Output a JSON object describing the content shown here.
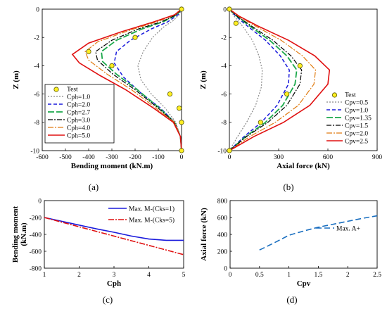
{
  "chart_data": [
    {
      "id": "a",
      "caption": "(a)",
      "type": "line",
      "xlabel": "Bending moment (kN.m)",
      "ylabel": "Z (m)",
      "xlim": [
        -600,
        0
      ],
      "ylim": [
        -10,
        0
      ],
      "xticks": [
        -600,
        -500,
        -400,
        -300,
        -200,
        -100,
        0
      ],
      "yticks": [
        0,
        -2,
        -4,
        -6,
        -8,
        -10
      ],
      "legend": "bottom-left",
      "test": {
        "name": "Test",
        "points": [
          [
            0,
            0
          ],
          [
            -200,
            -2
          ],
          [
            -400,
            -3
          ],
          [
            -300,
            -4
          ],
          [
            -50,
            -6
          ],
          [
            -10,
            -7
          ],
          [
            0,
            -8
          ],
          [
            0,
            -10
          ]
        ]
      },
      "series": [
        {
          "name": "Cph=1.0",
          "color": "#888888",
          "dash": "2,2",
          "width": 1.2,
          "points": [
            [
              0,
              0
            ],
            [
              -10,
              -0.4
            ],
            [
              -35,
              -0.8
            ],
            [
              -80,
              -1.3
            ],
            [
              -125,
              -2.0
            ],
            [
              -165,
              -3.0
            ],
            [
              -188,
              -4.0
            ],
            [
              -175,
              -5.0
            ],
            [
              -130,
              -6.0
            ],
            [
              -70,
              -7.0
            ],
            [
              -25,
              -8.0
            ],
            [
              -5,
              -9.0
            ],
            [
              0,
              -10
            ]
          ]
        },
        {
          "name": "Cph=2.0",
          "color": "#1a1adc",
          "dash": "5,3",
          "width": 1.5,
          "points": [
            [
              0,
              0
            ],
            [
              -15,
              -0.4
            ],
            [
              -60,
              -0.9
            ],
            [
              -130,
              -1.4
            ],
            [
              -220,
              -2.2
            ],
            [
              -280,
              -3.0
            ],
            [
              -290,
              -3.8
            ],
            [
              -250,
              -4.8
            ],
            [
              -170,
              -6.0
            ],
            [
              -90,
              -7.0
            ],
            [
              -30,
              -8.0
            ],
            [
              -5,
              -9.0
            ],
            [
              0,
              -10
            ]
          ]
        },
        {
          "name": "Cph=2.7",
          "color": "#1aa84a",
          "dash": "9,3",
          "width": 1.8,
          "points": [
            [
              0,
              0
            ],
            [
              -20,
              -0.4
            ],
            [
              -80,
              -0.9
            ],
            [
              -170,
              -1.4
            ],
            [
              -280,
              -2.2
            ],
            [
              -345,
              -3.0
            ],
            [
              -340,
              -3.7
            ],
            [
              -280,
              -4.6
            ],
            [
              -190,
              -5.7
            ],
            [
              -95,
              -7.0
            ],
            [
              -30,
              -8.0
            ],
            [
              -5,
              -9.0
            ],
            [
              0,
              -10
            ]
          ]
        },
        {
          "name": "Cph=3.0",
          "color": "#000000",
          "dash": "7,2,2,2",
          "width": 1.2,
          "points": [
            [
              0,
              0
            ],
            [
              -22,
              -0.4
            ],
            [
              -88,
              -0.9
            ],
            [
              -185,
              -1.4
            ],
            [
              -300,
              -2.2
            ],
            [
              -370,
              -3.0
            ],
            [
              -362,
              -3.6
            ],
            [
              -295,
              -4.6
            ],
            [
              -200,
              -5.7
            ],
            [
              -100,
              -7.0
            ],
            [
              -30,
              -8.0
            ],
            [
              -5,
              -9.0
            ],
            [
              0,
              -10
            ]
          ]
        },
        {
          "name": "Cph=4.0",
          "color": "#e07b10",
          "dash": "8,2,2,2",
          "width": 1.2,
          "points": [
            [
              0,
              0
            ],
            [
              -27,
              -0.4
            ],
            [
              -108,
              -0.9
            ],
            [
              -225,
              -1.5
            ],
            [
              -360,
              -2.3
            ],
            [
              -415,
              -3.0
            ],
            [
              -400,
              -3.6
            ],
            [
              -320,
              -4.6
            ],
            [
              -215,
              -5.7
            ],
            [
              -110,
              -7.0
            ],
            [
              -30,
              -8.0
            ],
            [
              -5,
              -9.0
            ],
            [
              0,
              -10
            ]
          ]
        },
        {
          "name": "Cph=5.0",
          "color": "#e01010",
          "dash": "",
          "width": 1.6,
          "points": [
            [
              0,
              0
            ],
            [
              -30,
              -0.4
            ],
            [
              -120,
              -0.9
            ],
            [
              -260,
              -1.6
            ],
            [
              -400,
              -2.4
            ],
            [
              -470,
              -3.2
            ],
            [
              -440,
              -3.8
            ],
            [
              -350,
              -4.7
            ],
            [
              -240,
              -5.7
            ],
            [
              -120,
              -7.0
            ],
            [
              -35,
              -8.0
            ],
            [
              -5,
              -9.0
            ],
            [
              0,
              -10
            ]
          ]
        }
      ]
    },
    {
      "id": "b",
      "caption": "(b)",
      "type": "line",
      "xlabel": "Axial force (kN)",
      "ylabel": "Z (m)",
      "xlim": [
        0,
        900
      ],
      "ylim": [
        -10,
        0
      ],
      "xticks": [
        0,
        300,
        600,
        900
      ],
      "yticks": [
        0,
        -2,
        -4,
        -6,
        -8,
        -10
      ],
      "legend": "bottom-right",
      "test": {
        "name": "Test",
        "points": [
          [
            0,
            0
          ],
          [
            40,
            -1
          ],
          [
            430,
            -4
          ],
          [
            350,
            -6
          ],
          [
            190,
            -8
          ],
          [
            0,
            -10
          ]
        ]
      },
      "series": [
        {
          "name": "Cpv=0.5",
          "color": "#888888",
          "dash": "2,2",
          "width": 1.2,
          "points": [
            [
              0,
              0
            ],
            [
              30,
              -0.5
            ],
            [
              80,
              -1.2
            ],
            [
              140,
              -2.2
            ],
            [
              180,
              -3.3
            ],
            [
              200,
              -4.3
            ],
            [
              195,
              -5.5
            ],
            [
              160,
              -6.8
            ],
            [
              105,
              -8.0
            ],
            [
              50,
              -9.0
            ],
            [
              0,
              -10
            ]
          ]
        },
        {
          "name": "Cpv=1.0",
          "color": "#1a1adc",
          "dash": "5,3",
          "width": 1.5,
          "points": [
            [
              0,
              0
            ],
            [
              40,
              -0.5
            ],
            [
              110,
              -1.2
            ],
            [
              220,
              -2.2
            ],
            [
              310,
              -3.3
            ],
            [
              365,
              -4.3
            ],
            [
              360,
              -5.3
            ],
            [
              290,
              -6.8
            ],
            [
              195,
              -8.0
            ],
            [
              90,
              -9.0
            ],
            [
              0,
              -10
            ]
          ]
        },
        {
          "name": "Cpv=1.35",
          "color": "#1aa84a",
          "dash": "9,3",
          "width": 1.8,
          "points": [
            [
              0,
              0
            ],
            [
              45,
              -0.5
            ],
            [
              125,
              -1.2
            ],
            [
              245,
              -2.2
            ],
            [
              350,
              -3.3
            ],
            [
              410,
              -4.3
            ],
            [
              400,
              -5.3
            ],
            [
              325,
              -6.8
            ],
            [
              220,
              -8.0
            ],
            [
              100,
              -9.0
            ],
            [
              0,
              -10
            ]
          ]
        },
        {
          "name": "Cpv=1.5",
          "color": "#000000",
          "dash": "7,2,2,2",
          "width": 1.2,
          "points": [
            [
              0,
              0
            ],
            [
              48,
              -0.5
            ],
            [
              135,
              -1.2
            ],
            [
              265,
              -2.2
            ],
            [
              375,
              -3.3
            ],
            [
              440,
              -4.3
            ],
            [
              430,
              -5.3
            ],
            [
              350,
              -6.8
            ],
            [
              235,
              -8.0
            ],
            [
              105,
              -9.0
            ],
            [
              0,
              -10
            ]
          ]
        },
        {
          "name": "Cpv=2.0",
          "color": "#e07b10",
          "dash": "8,2,2,2",
          "width": 1.2,
          "points": [
            [
              0,
              0
            ],
            [
              55,
              -0.5
            ],
            [
              160,
              -1.2
            ],
            [
              315,
              -2.2
            ],
            [
              445,
              -3.3
            ],
            [
              525,
              -4.3
            ],
            [
              515,
              -5.3
            ],
            [
              420,
              -6.8
            ],
            [
              280,
              -8.0
            ],
            [
              125,
              -9.0
            ],
            [
              0,
              -10
            ]
          ]
        },
        {
          "name": "Cpv=2.5",
          "color": "#e01010",
          "dash": "",
          "width": 1.6,
          "points": [
            [
              0,
              0
            ],
            [
              60,
              -0.5
            ],
            [
              175,
              -1.2
            ],
            [
              360,
              -2.2
            ],
            [
              520,
              -3.3
            ],
            [
              610,
              -4.3
            ],
            [
              600,
              -5.3
            ],
            [
              490,
              -6.8
            ],
            [
              330,
              -8.0
            ],
            [
              150,
              -9.0
            ],
            [
              0,
              -10
            ]
          ]
        }
      ]
    },
    {
      "id": "c",
      "caption": "(c)",
      "type": "line",
      "xlabel": "Cph",
      "ylabel": "Bending moment (kN.m)",
      "xlim": [
        1,
        5
      ],
      "ylim": [
        -800,
        0
      ],
      "xticks": [
        1,
        2,
        3,
        4,
        5
      ],
      "yticks": [
        0,
        -200,
        -400,
        -600,
        -800
      ],
      "legend": "top-right",
      "series": [
        {
          "name": "Max. M-(Cks=1)",
          "color": "#1a1adc",
          "dash": "",
          "width": 1.6,
          "points": [
            [
              1,
              -200
            ],
            [
              1.5,
              -245
            ],
            [
              2,
              -290
            ],
            [
              2.5,
              -335
            ],
            [
              3,
              -375
            ],
            [
              3.5,
              -420
            ],
            [
              4,
              -455
            ],
            [
              4.5,
              -470
            ],
            [
              5,
              -470
            ]
          ]
        },
        {
          "name": "Max. M-(Cks=5)",
          "color": "#e01010",
          "dash": "8,2,2,2",
          "width": 1.6,
          "points": [
            [
              1,
              -200
            ],
            [
              2,
              -310
            ],
            [
              3,
              -420
            ],
            [
              4,
              -530
            ],
            [
              5,
              -640
            ]
          ]
        }
      ]
    },
    {
      "id": "d",
      "caption": "(d)",
      "type": "line",
      "xlabel": "Cpv",
      "ylabel": "Axial force (kN)",
      "xlim": [
        0,
        2.5
      ],
      "ylim": [
        0,
        800
      ],
      "xticks": [
        0,
        0.5,
        1,
        1.5,
        2,
        2.5
      ],
      "yticks": [
        0,
        200,
        400,
        600,
        800
      ],
      "legend": "center-right",
      "series": [
        {
          "name": "Max. A+",
          "color": "#1a6fc0",
          "dash": "8,4",
          "width": 1.6,
          "points": [
            [
              0.5,
              215
            ],
            [
              0.75,
              300
            ],
            [
              1.0,
              390
            ],
            [
              1.25,
              440
            ],
            [
              1.5,
              485
            ],
            [
              1.75,
              520
            ],
            [
              2.0,
              555
            ],
            [
              2.25,
              590
            ],
            [
              2.5,
              620
            ]
          ]
        }
      ]
    }
  ]
}
